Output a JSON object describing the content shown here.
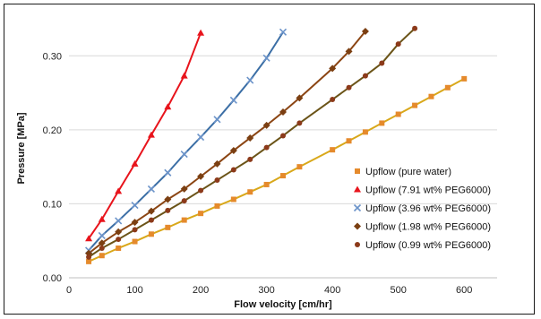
{
  "chart_data": {
    "type": "scatter",
    "title": "",
    "xlabel": "Flow velocity [cm/hr]",
    "ylabel": "Pressure [MPa]",
    "xlim": [
      0,
      650
    ],
    "ylim": [
      0,
      0.35
    ],
    "x_ticks": [
      "0",
      "100",
      "200",
      "300",
      "400",
      "500",
      "600"
    ],
    "y_ticks": [
      "0.00",
      "0.10",
      "0.20",
      "0.30"
    ],
    "grid": "horizontal",
    "legend_position": "bottom-right",
    "series": [
      {
        "name": "Upflow (pure water)",
        "marker": "square",
        "color": "#e58a2c",
        "line_color": "#d9a81a",
        "x": [
          30,
          50,
          75,
          100,
          125,
          150,
          175,
          200,
          225,
          250,
          275,
          300,
          325,
          350,
          400,
          425,
          450,
          475,
          500,
          525,
          550,
          575,
          600
        ],
        "y": [
          0.022,
          0.03,
          0.04,
          0.049,
          0.059,
          0.068,
          0.078,
          0.087,
          0.097,
          0.106,
          0.116,
          0.126,
          0.138,
          0.15,
          0.173,
          0.185,
          0.197,
          0.209,
          0.221,
          0.233,
          0.245,
          0.257,
          0.269
        ]
      },
      {
        "name": "Upflow (7.91 wt% PEG6000)",
        "marker": "triangle",
        "color": "#e8141c",
        "line_color": "#e8141c",
        "x": [
          30,
          50,
          75,
          100,
          125,
          150,
          175,
          200
        ],
        "y": [
          0.053,
          0.079,
          0.117,
          0.154,
          0.193,
          0.231,
          0.273,
          0.331
        ]
      },
      {
        "name": "Upflow (3.96 wt% PEG6000)",
        "marker": "x",
        "color": "#6b93c9",
        "line_color": "#3b6ea5",
        "x": [
          30,
          50,
          75,
          100,
          125,
          150,
          175,
          200,
          225,
          250,
          275,
          300,
          325
        ],
        "y": [
          0.037,
          0.057,
          0.077,
          0.098,
          0.12,
          0.142,
          0.167,
          0.19,
          0.214,
          0.24,
          0.267,
          0.297,
          0.332
        ]
      },
      {
        "name": "Upflow (1.98 wt% PEG6000)",
        "marker": "diamond",
        "color": "#7b3f12",
        "line_color": "#8b4513",
        "x": [
          30,
          50,
          75,
          100,
          125,
          150,
          175,
          200,
          225,
          250,
          275,
          300,
          325,
          350,
          400,
          425,
          450
        ],
        "y": [
          0.033,
          0.047,
          0.062,
          0.075,
          0.09,
          0.106,
          0.12,
          0.137,
          0.154,
          0.172,
          0.189,
          0.206,
          0.224,
          0.243,
          0.283,
          0.306,
          0.333
        ]
      },
      {
        "name": "Upflow (0.99 wt% PEG6000)",
        "marker": "circle",
        "color": "#8c3a1a",
        "line_color": "#6b5418",
        "x": [
          30,
          50,
          75,
          100,
          125,
          150,
          175,
          200,
          225,
          250,
          275,
          300,
          325,
          350,
          400,
          425,
          450,
          475,
          500,
          525
        ],
        "y": [
          0.028,
          0.04,
          0.052,
          0.065,
          0.078,
          0.091,
          0.104,
          0.118,
          0.132,
          0.146,
          0.16,
          0.176,
          0.192,
          0.209,
          0.241,
          0.257,
          0.273,
          0.29,
          0.316,
          0.337
        ]
      }
    ]
  }
}
